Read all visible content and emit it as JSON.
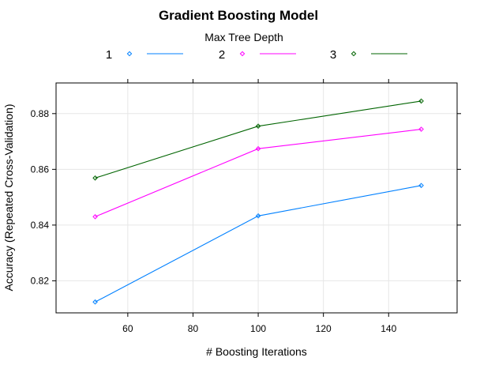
{
  "chart_data": {
    "type": "line",
    "title": "Gradient Boosting Model",
    "xlabel": "# Boosting Iterations",
    "ylabel": "Accuracy (Repeated Cross-Validation)",
    "xlim": [
      38,
      161
    ],
    "ylim": [
      0.8085,
      0.891
    ],
    "xticks": [
      60,
      80,
      100,
      120,
      140
    ],
    "yticks": [
      0.82,
      0.84,
      0.86,
      0.88
    ],
    "xtick_labels": [
      "60",
      "80",
      "100",
      "120",
      "140"
    ],
    "ytick_labels": [
      "0.82",
      "0.84",
      "0.86",
      "0.88"
    ],
    "grid": true,
    "legend": {
      "title": "Max Tree Depth",
      "position": "top"
    },
    "x": [
      50,
      100,
      150
    ],
    "series": [
      {
        "name": "1",
        "color": "#0080ff",
        "values": [
          0.8124,
          0.8433,
          0.8542
        ]
      },
      {
        "name": "2",
        "color": "#ff00ff",
        "values": [
          0.843,
          0.8674,
          0.8744
        ]
      },
      {
        "name": "3",
        "color": "#006400",
        "values": [
          0.8569,
          0.8755,
          0.8845
        ]
      }
    ]
  }
}
